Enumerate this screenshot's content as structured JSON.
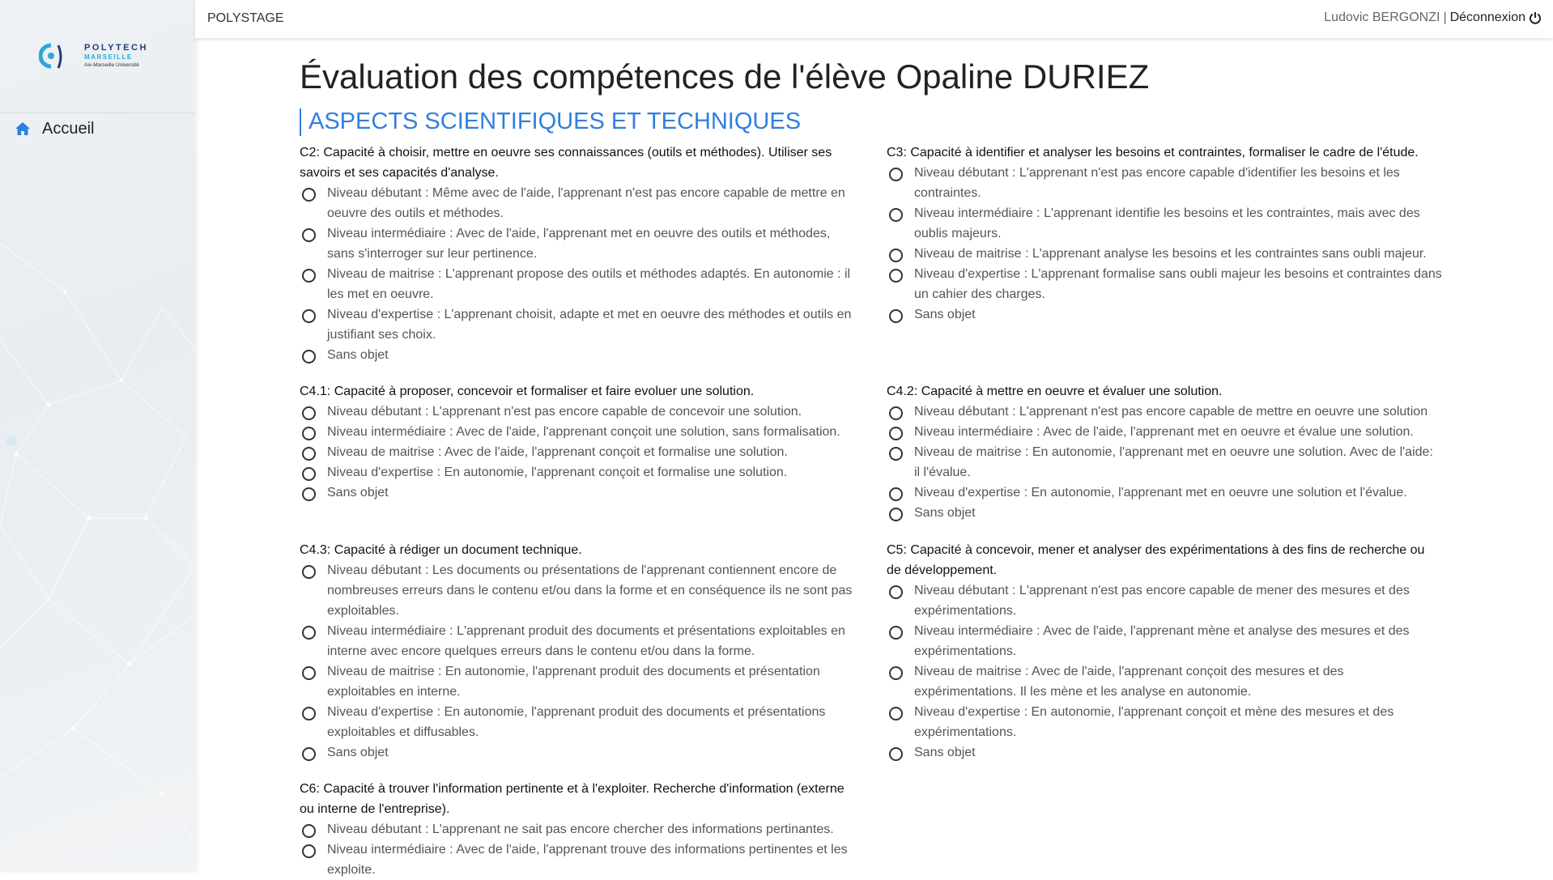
{
  "app": {
    "title": "POLYSTAGE"
  },
  "user": {
    "name": "Ludovic BERGONZI",
    "separator": "|",
    "logout": "Déconnexion"
  },
  "logo": {
    "brand": "POLYTECH",
    "city": "MARSEILLE",
    "university": "Aix-Marseille Université"
  },
  "sidebar": {
    "items": [
      {
        "label": "Accueil",
        "icon": "home-icon"
      }
    ]
  },
  "page": {
    "title": "Évaluation des compétences de l'élève Opaline DURIEZ",
    "section": "ASPECTS SCIENTIFIQUES ET TECHNIQUES"
  },
  "colors": {
    "accent": "#2f7fe0",
    "text": "#212529",
    "muted": "#555555"
  },
  "competences": [
    {
      "question": "C2: Capacité à choisir, mettre en oeuvre ses connaissances (outils et méthodes). Utiliser ses savoirs et ses capacités d'analyse.",
      "options": [
        "Niveau débutant : Même avec de l'aide, l'apprenant n'est pas encore capable de mettre en oeuvre des outils et méthodes.",
        "Niveau intermédiaire : Avec de l'aide, l'apprenant met en oeuvre des outils et méthodes, sans s'interroger sur leur pertinence.",
        "Niveau de maitrise : L'apprenant propose des outils et méthodes adaptés. En autonomie : il les met en oeuvre.",
        "Niveau d'expertise : L'apprenant choisit, adapte et met en oeuvre des méthodes et outils en justifiant ses choix.",
        "Sans objet"
      ]
    },
    {
      "question": "C3: Capacité à identifier et analyser les besoins et contraintes, formaliser le cadre de l'étude.",
      "options": [
        "Niveau débutant : L'apprenant n'est pas encore capable d'identifier les besoins et les contraintes.",
        "Niveau intermédiaire : L'apprenant identifie les besoins et les contraintes, mais avec des oublis majeurs.",
        "Niveau de maitrise : L'apprenant analyse les besoins et les contraintes sans oubli majeur.",
        "Niveau d'expertise : L'apprenant formalise sans oubli majeur les besoins et contraintes dans un cahier des charges.",
        "Sans objet"
      ]
    },
    {
      "question": "C4.1: Capacité à proposer, concevoir et formaliser et faire evoluer une solution.",
      "options": [
        "Niveau débutant : L'apprenant n'est pas encore capable de concevoir une solution.",
        "Niveau intermédiaire : Avec de l'aide, l'apprenant conçoit une solution, sans formalisation.",
        "Niveau de maitrise : Avec de l'aide, l'apprenant conçoit et formalise une solution.",
        "Niveau d'expertise : En autonomie, l'apprenant conçoit et formalise une solution.",
        "Sans objet"
      ]
    },
    {
      "question": "C4.2: Capacité à mettre en oeuvre et évaluer une solution.",
      "options": [
        "Niveau débutant : L'apprenant n'est pas encore capable de mettre en oeuvre une solution",
        "Niveau intermédiaire : Avec de l'aide, l'apprenant met en oeuvre et évalue une solution.",
        "Niveau de maitrise : En autonomie, l'apprenant met en oeuvre une solution. Avec de l'aide: il l'évalue.",
        "Niveau d'expertise : En autonomie, l'apprenant met en oeuvre une solution et l'évalue.",
        "Sans objet"
      ]
    },
    {
      "question": "C4.3: Capacité à rédiger un document technique.",
      "options": [
        "Niveau débutant : Les documents ou présentations de l'apprenant contiennent encore de nombreuses erreurs dans le contenu et/ou dans la forme et en conséquence ils ne sont pas exploitables.",
        "Niveau intermédiaire : L'apprenant produit des documents et présentations exploitables en interne avec encore quelques erreurs dans le contenu et/ou dans la forme.",
        "Niveau de maitrise : En autonomie, l'apprenant produit des documents et présentation exploitables en interne.",
        "Niveau d'expertise : En autonomie, l'apprenant produit des documents et présentations exploitables et diffusables.",
        "Sans objet"
      ]
    },
    {
      "question": "C5: Capacité à concevoir, mener et analyser des expérimentations à des fins de recherche ou de développement.",
      "options": [
        "Niveau débutant : L'apprenant n'est pas encore capable de mener des mesures et des expérimentations.",
        "Niveau intermédiaire : Avec de l'aide, l'apprenant mène et analyse des mesures et des expérimentations.",
        "Niveau de maitrise : Avec de l'aide, l'apprenant conçoit des mesures et des expérimentations. Il les mène et les analyse en autonomie.",
        "Niveau d'expertise : En autonomie, l'apprenant conçoit et mène des mesures et des expérimentations.",
        "Sans objet"
      ]
    },
    {
      "question": "C6: Capacité à trouver l'information pertinente et à l'exploiter. Recherche d'information (externe ou interne de l'entreprise).",
      "options": [
        "Niveau débutant : L'apprenant ne sait pas encore chercher des informations pertinantes.",
        "Niveau intermédiaire : Avec de l'aide, l'apprenant trouve des informations pertinentes et les exploite."
      ]
    }
  ]
}
